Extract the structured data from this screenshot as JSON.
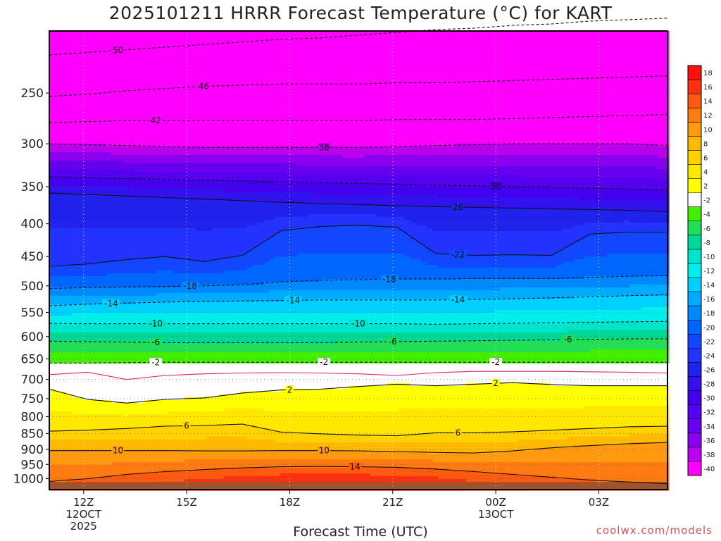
{
  "chart_data": {
    "type": "heatmap",
    "title": "2025101211 HRRR Forecast Temperature (°C) for KART",
    "xlabel": "Forecast Time (UTC)",
    "ylabel": "",
    "credit": "coolwx.com/models",
    "x_ticks": [
      {
        "hour": 0,
        "label": "12Z",
        "sub": [
          "12OCT",
          "2025"
        ]
      },
      {
        "hour": 3,
        "label": "15Z",
        "sub": []
      },
      {
        "hour": 6,
        "label": "18Z",
        "sub": []
      },
      {
        "hour": 9,
        "label": "21Z",
        "sub": []
      },
      {
        "hour": 12,
        "label": "00Z",
        "sub": [
          "13OCT"
        ]
      },
      {
        "hour": 15,
        "label": "03Z",
        "sub": []
      }
    ],
    "xlim": [
      -1,
      17
    ],
    "y_ticks": [
      250,
      300,
      350,
      400,
      450,
      500,
      550,
      600,
      650,
      700,
      750,
      800,
      850,
      900,
      950,
      1000
    ],
    "ylim": [
      200,
      1040
    ],
    "y_scale": "log",
    "colorbar": {
      "labels": [
        "18",
        "16",
        "14",
        "12",
        "10",
        "8",
        "6",
        "4",
        "2",
        "-2",
        "-4",
        "-6",
        "-8",
        "-10",
        "-12",
        "-14",
        "-16",
        "-18",
        "-20",
        "-22",
        "-24",
        "-26",
        "-28",
        "-30",
        "-32",
        "-34",
        "-36",
        "-38",
        "-40"
      ],
      "colors": [
        "#ff1010",
        "#ff3010",
        "#ff5a10",
        "#ff7a10",
        "#ff9a10",
        "#ffba00",
        "#ffd200",
        "#ffe800",
        "#ffff00",
        "#ffffff",
        "#44ee00",
        "#22dd55",
        "#00d898",
        "#00e4cc",
        "#00eeee",
        "#00d0ff",
        "#00aaff",
        "#0088ff",
        "#0066ff",
        "#1148ff",
        "#2233ff",
        "#2222ee",
        "#3311ee",
        "#4400ee",
        "#5500ee",
        "#6600ee",
        "#8800ee",
        "#bb00ee",
        "#ff00ff"
      ]
    },
    "isotherms": [
      {
        "label": "50",
        "temp": -50,
        "style": "dashed",
        "levels": [
          218,
          216,
          214,
          212,
          210,
          208,
          206,
          205,
          203,
          201,
          199,
          198,
          196,
          195,
          193,
          192,
          191
        ]
      },
      {
        "label": "46",
        "temp": -46,
        "style": "dashed",
        "levels": [
          253,
          251,
          248,
          246,
          244,
          243,
          242,
          242,
          242,
          241,
          241,
          240,
          239,
          238,
          237,
          236,
          235
        ]
      },
      {
        "label": "42",
        "temp": -42,
        "style": "dashed",
        "levels": [
          278,
          277,
          276,
          276,
          276,
          276,
          276,
          276,
          276,
          275,
          275,
          275,
          274,
          273,
          272,
          271,
          270
        ]
      },
      {
        "label": "38",
        "temp": -38,
        "style": "dashed",
        "levels": [
          300,
          301,
          302,
          303,
          304,
          304,
          304,
          304,
          304,
          303,
          302,
          301,
          300,
          300,
          300,
          300,
          302
        ]
      },
      {
        "label": "30",
        "temp": -30,
        "style": "dashed",
        "levels": [
          338,
          339,
          340,
          341,
          342,
          343,
          344,
          345,
          346,
          347,
          348,
          349,
          350,
          351,
          352,
          353,
          355
        ]
      },
      {
        "label": "26",
        "temp": -26,
        "style": "solid",
        "levels": [
          358,
          360,
          362,
          364,
          366,
          368,
          370,
          372,
          373,
          375,
          376,
          377,
          378,
          379,
          380,
          381,
          383
        ]
      },
      {
        "label": "-22",
        "temp": -22,
        "style": "solid",
        "levels": [
          466,
          462,
          455,
          450,
          458,
          448,
          410,
          404,
          402,
          405,
          445,
          448,
          447,
          448,
          415,
          412,
          412
        ]
      },
      {
        "label": "-18",
        "temp": -18,
        "style": "dashed",
        "levels": [
          505,
          503,
          502,
          501,
          500,
          498,
          493,
          490,
          489,
          488,
          488,
          487,
          487,
          487,
          485,
          483,
          482
        ]
      },
      {
        "label": "-14",
        "temp": -14,
        "style": "dashed",
        "levels": [
          537,
          534,
          532,
          530,
          529,
          528,
          527,
          526,
          526,
          526,
          526,
          525,
          524,
          522,
          520,
          518,
          516
        ]
      },
      {
        "label": "-10",
        "temp": -10,
        "style": "dashed",
        "levels": [
          572,
          573,
          573,
          573,
          573,
          573,
          573,
          573,
          573,
          573,
          574,
          573,
          572,
          571,
          570,
          569,
          568
        ]
      },
      {
        "label": "-6",
        "temp": -6,
        "style": "dashed",
        "levels": [
          610,
          611,
          612,
          613,
          613,
          613,
          613,
          613,
          612,
          611,
          610,
          609,
          608,
          607,
          606,
          605,
          605
        ]
      },
      {
        "label": "-2",
        "temp": -2,
        "style": "dashed",
        "levels": [
          660,
          660,
          659,
          658,
          658,
          658,
          658,
          658,
          658,
          658,
          658,
          658,
          658,
          658,
          658,
          658,
          658
        ]
      },
      {
        "label": "",
        "temp": 0,
        "style": "magenta",
        "levels": [
          688,
          682,
          700,
          690,
          686,
          684,
          683,
          684,
          686,
          690,
          683,
          680,
          680,
          680,
          681,
          682,
          684
        ]
      },
      {
        "label": "2",
        "temp": 2,
        "style": "solid",
        "levels": [
          725,
          752,
          762,
          752,
          748,
          735,
          727,
          725,
          718,
          712,
          716,
          712,
          708,
          713,
          716,
          716,
          716
        ]
      },
      {
        "label": "6",
        "temp": 6,
        "style": "solid",
        "levels": [
          843,
          840,
          835,
          828,
          826,
          822,
          846,
          851,
          855,
          857,
          848,
          848,
          845,
          840,
          835,
          830,
          828
        ]
      },
      {
        "label": "10",
        "temp": 10,
        "style": "solid",
        "levels": [
          904,
          904,
          904,
          904,
          905,
          905,
          904,
          904,
          905,
          907,
          910,
          912,
          905,
          895,
          888,
          882,
          878
        ]
      },
      {
        "label": "14",
        "temp": 14,
        "style": "solid",
        "levels": [
          1010,
          1000,
          985,
          975,
          968,
          962,
          958,
          957,
          958,
          960,
          966,
          975,
          985,
          995,
          1005,
          1012,
          1018
        ]
      }
    ],
    "label_positions": [
      {
        "label": "50",
        "hour": 1.0
      },
      {
        "label": "46",
        "hour": 3.5
      },
      {
        "label": "42",
        "hour": 2.1
      },
      {
        "label": "38",
        "hour": 7.0
      },
      {
        "label": "30",
        "hour": 12.0
      },
      {
        "label": "26",
        "hour": 10.9
      },
      {
        "label": "-22",
        "hour": 10.9
      },
      {
        "label": "-18",
        "hour": 3.1
      },
      {
        "label": "-18",
        "hour": 8.9
      },
      {
        "label": "-14",
        "hour": 0.8
      },
      {
        "label": "-14",
        "hour": 6.1
      },
      {
        "label": "-14",
        "hour": 10.9
      },
      {
        "label": "-10",
        "hour": 2.1
      },
      {
        "label": "-10",
        "hour": 8.0
      },
      {
        "label": "-6",
        "hour": 2.1
      },
      {
        "label": "-6",
        "hour": 9.0
      },
      {
        "label": "-6",
        "hour": 14.1
      },
      {
        "label": "-2",
        "hour": 2.1
      },
      {
        "label": "-2",
        "hour": 7.0
      },
      {
        "label": "-2",
        "hour": 12.0
      },
      {
        "label": "2",
        "hour": 6.0
      },
      {
        "label": "2",
        "hour": 12.0
      },
      {
        "label": "6",
        "hour": 3.0
      },
      {
        "label": "6",
        "hour": 10.9
      },
      {
        "label": "10",
        "hour": 1.0
      },
      {
        "label": "10",
        "hour": 7.0
      },
      {
        "label": "14",
        "hour": 7.9
      }
    ]
  }
}
